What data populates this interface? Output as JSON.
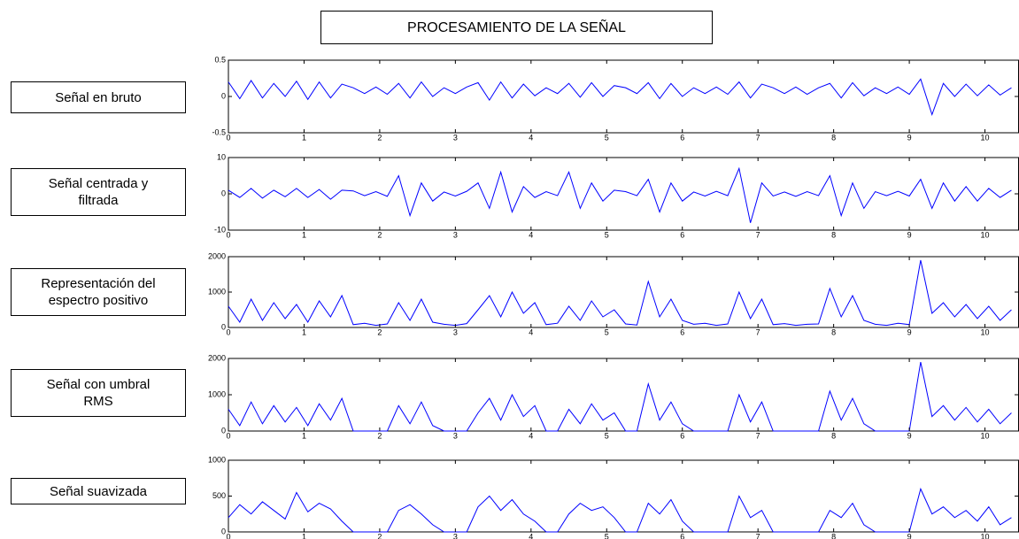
{
  "header": {
    "title": "PROCESAMIENTO DE LA SEÑAL"
  },
  "chart_data": [
    {
      "type": "line",
      "title": "Señal en bruto",
      "x": [
        0,
        0.15,
        0.3,
        0.45,
        0.6,
        0.75,
        0.9,
        1.05,
        1.2,
        1.35,
        1.5,
        1.65,
        1.8,
        1.95,
        2.1,
        2.25,
        2.4,
        2.55,
        2.7,
        2.85,
        3,
        3.15,
        3.3,
        3.45,
        3.6,
        3.75,
        3.9,
        4.05,
        4.2,
        4.35,
        4.5,
        4.65,
        4.8,
        4.95,
        5.1,
        5.25,
        5.4,
        5.55,
        5.7,
        5.85,
        6,
        6.15,
        6.3,
        6.45,
        6.6,
        6.75,
        6.9,
        7.05,
        7.2,
        7.35,
        7.5,
        7.65,
        7.8,
        7.95,
        8.1,
        8.25,
        8.4,
        8.55,
        8.7,
        8.85,
        9,
        9.15,
        9.3,
        9.45,
        9.6,
        9.75,
        9.9,
        10.05,
        10.2,
        10.35
      ],
      "series": [
        {
          "color": "#0000ff",
          "values": [
            0.2,
            -0.03,
            0.22,
            -0.02,
            0.18,
            0,
            0.21,
            -0.04,
            0.2,
            -0.02,
            0.17,
            0.12,
            0.04,
            0.13,
            0.03,
            0.18,
            -0.02,
            0.2,
            0,
            0.12,
            0.04,
            0.13,
            0.19,
            -0.05,
            0.2,
            -0.02,
            0.17,
            0.01,
            0.12,
            0.04,
            0.18,
            -0.01,
            0.19,
            0,
            0.15,
            0.12,
            0.04,
            0.19,
            -0.03,
            0.18,
            0,
            0.12,
            0.04,
            0.13,
            0.03,
            0.2,
            -0.02,
            0.17,
            0.12,
            0.04,
            0.13,
            0.03,
            0.12,
            0.18,
            -0.02,
            0.19,
            0.01,
            0.12,
            0.04,
            0.13,
            0.03,
            0.24,
            -0.25,
            0.18,
            0,
            0.17,
            0.01,
            0.16,
            0.02,
            0.12
          ]
        }
      ],
      "xlim": [
        0,
        10.45
      ],
      "ylim": [
        -0.5,
        0.5
      ],
      "xticks": [
        0,
        1,
        2,
        3,
        4,
        5,
        6,
        7,
        8,
        9,
        10
      ],
      "yticks": [
        -0.5,
        0,
        0.5
      ]
    },
    {
      "type": "line",
      "title": "Señal centrada y\nfiltrada",
      "x": [
        0,
        0.15,
        0.3,
        0.45,
        0.6,
        0.75,
        0.9,
        1.05,
        1.2,
        1.35,
        1.5,
        1.65,
        1.8,
        1.95,
        2.1,
        2.25,
        2.4,
        2.55,
        2.7,
        2.85,
        3,
        3.15,
        3.3,
        3.45,
        3.6,
        3.75,
        3.9,
        4.05,
        4.2,
        4.35,
        4.5,
        4.65,
        4.8,
        4.95,
        5.1,
        5.25,
        5.4,
        5.55,
        5.7,
        5.85,
        6,
        6.15,
        6.3,
        6.45,
        6.6,
        6.75,
        6.9,
        7.05,
        7.2,
        7.35,
        7.5,
        7.65,
        7.8,
        7.95,
        8.1,
        8.25,
        8.4,
        8.55,
        8.7,
        8.85,
        9,
        9.15,
        9.3,
        9.45,
        9.6,
        9.75,
        9.9,
        10.05,
        10.2,
        10.35
      ],
      "series": [
        {
          "color": "#0000ff",
          "values": [
            1,
            -1,
            1.5,
            -1.2,
            1,
            -0.8,
            1.5,
            -1,
            1.2,
            -1.5,
            1,
            0.8,
            -0.5,
            0.6,
            -0.7,
            5,
            -6,
            3,
            -2,
            0.5,
            -0.6,
            0.7,
            3,
            -4,
            6,
            -5,
            2,
            -1,
            0.6,
            -0.5,
            6,
            -4,
            3,
            -2,
            1,
            0.6,
            -0.5,
            4,
            -5,
            3,
            -2,
            0.5,
            -0.6,
            0.7,
            -0.5,
            7,
            -8,
            3,
            -0.6,
            0.5,
            -0.7,
            0.6,
            -0.5,
            5,
            -6,
            3,
            -4,
            0.6,
            -0.5,
            0.7,
            -0.6,
            4,
            -4,
            3,
            -2,
            2,
            -2,
            1.5,
            -1,
            1
          ]
        }
      ],
      "xlim": [
        0,
        10.45
      ],
      "ylim": [
        -10,
        10
      ],
      "xticks": [
        0,
        1,
        2,
        3,
        4,
        5,
        6,
        7,
        8,
        9,
        10
      ],
      "yticks": [
        -10,
        0,
        10
      ]
    },
    {
      "type": "line",
      "title": "Representación del\nespectro positivo",
      "x": [
        0,
        0.15,
        0.3,
        0.45,
        0.6,
        0.75,
        0.9,
        1.05,
        1.2,
        1.35,
        1.5,
        1.65,
        1.8,
        1.95,
        2.1,
        2.25,
        2.4,
        2.55,
        2.7,
        2.85,
        3,
        3.15,
        3.3,
        3.45,
        3.6,
        3.75,
        3.9,
        4.05,
        4.2,
        4.35,
        4.5,
        4.65,
        4.8,
        4.95,
        5.1,
        5.25,
        5.4,
        5.55,
        5.7,
        5.85,
        6,
        6.15,
        6.3,
        6.45,
        6.6,
        6.75,
        6.9,
        7.05,
        7.2,
        7.35,
        7.5,
        7.65,
        7.8,
        7.95,
        8.1,
        8.25,
        8.4,
        8.55,
        8.7,
        8.85,
        9,
        9.15,
        9.3,
        9.45,
        9.6,
        9.75,
        9.9,
        10.05,
        10.2,
        10.35
      ],
      "series": [
        {
          "color": "#0000ff",
          "values": [
            600,
            150,
            800,
            200,
            700,
            250,
            650,
            150,
            750,
            300,
            900,
            80,
            120,
            60,
            100,
            700,
            200,
            800,
            150,
            90,
            60,
            110,
            500,
            900,
            300,
            1000,
            400,
            700,
            80,
            120,
            600,
            200,
            750,
            300,
            500,
            100,
            70,
            1300,
            300,
            800,
            200,
            90,
            120,
            60,
            100,
            1000,
            250,
            800,
            80,
            110,
            60,
            90,
            100,
            1100,
            300,
            900,
            200,
            90,
            60,
            120,
            80,
            1900,
            400,
            700,
            300,
            650,
            250,
            600,
            200,
            500
          ]
        }
      ],
      "xlim": [
        0,
        10.45
      ],
      "ylim": [
        0,
        2000
      ],
      "xticks": [
        0,
        1,
        2,
        3,
        4,
        5,
        6,
        7,
        8,
        9,
        10
      ],
      "yticks": [
        0,
        1000,
        2000
      ]
    },
    {
      "type": "line",
      "title": "Señal con umbral\nRMS",
      "x": [
        0,
        0.15,
        0.3,
        0.45,
        0.6,
        0.75,
        0.9,
        1.05,
        1.2,
        1.35,
        1.5,
        1.65,
        1.8,
        1.95,
        2.1,
        2.25,
        2.4,
        2.55,
        2.7,
        2.85,
        3,
        3.15,
        3.3,
        3.45,
        3.6,
        3.75,
        3.9,
        4.05,
        4.2,
        4.35,
        4.5,
        4.65,
        4.8,
        4.95,
        5.1,
        5.25,
        5.4,
        5.55,
        5.7,
        5.85,
        6,
        6.15,
        6.3,
        6.45,
        6.6,
        6.75,
        6.9,
        7.05,
        7.2,
        7.35,
        7.5,
        7.65,
        7.8,
        7.95,
        8.1,
        8.25,
        8.4,
        8.55,
        8.7,
        8.85,
        9,
        9.15,
        9.3,
        9.45,
        9.6,
        9.75,
        9.9,
        10.05,
        10.2,
        10.35
      ],
      "series": [
        {
          "color": "#0000ff",
          "values": [
            600,
            150,
            800,
            200,
            700,
            250,
            650,
            150,
            750,
            300,
            900,
            0,
            0,
            0,
            0,
            700,
            200,
            800,
            150,
            0,
            0,
            0,
            500,
            900,
            300,
            1000,
            400,
            700,
            0,
            0,
            600,
            200,
            750,
            300,
            500,
            0,
            0,
            1300,
            300,
            800,
            200,
            0,
            0,
            0,
            0,
            1000,
            250,
            800,
            0,
            0,
            0,
            0,
            0,
            1100,
            300,
            900,
            200,
            0,
            0,
            0,
            0,
            1900,
            400,
            700,
            300,
            650,
            250,
            600,
            200,
            500
          ]
        }
      ],
      "xlim": [
        0,
        10.45
      ],
      "ylim": [
        0,
        2000
      ],
      "xticks": [
        0,
        1,
        2,
        3,
        4,
        5,
        6,
        7,
        8,
        9,
        10
      ],
      "yticks": [
        0,
        1000,
        2000
      ]
    },
    {
      "type": "line",
      "title": "Señal suavizada",
      "x": [
        0,
        0.15,
        0.3,
        0.45,
        0.6,
        0.75,
        0.9,
        1.05,
        1.2,
        1.35,
        1.5,
        1.65,
        1.8,
        1.95,
        2.1,
        2.25,
        2.4,
        2.55,
        2.7,
        2.85,
        3,
        3.15,
        3.3,
        3.45,
        3.6,
        3.75,
        3.9,
        4.05,
        4.2,
        4.35,
        4.5,
        4.65,
        4.8,
        4.95,
        5.1,
        5.25,
        5.4,
        5.55,
        5.7,
        5.85,
        6,
        6.15,
        6.3,
        6.45,
        6.6,
        6.75,
        6.9,
        7.05,
        7.2,
        7.35,
        7.5,
        7.65,
        7.8,
        7.95,
        8.1,
        8.25,
        8.4,
        8.55,
        8.7,
        8.85,
        9,
        9.15,
        9.3,
        9.45,
        9.6,
        9.75,
        9.9,
        10.05,
        10.2,
        10.35
      ],
      "series": [
        {
          "color": "#0000ff",
          "values": [
            200,
            380,
            250,
            420,
            300,
            180,
            550,
            280,
            400,
            320,
            150,
            0,
            0,
            0,
            0,
            300,
            380,
            250,
            100,
            0,
            0,
            0,
            350,
            500,
            300,
            450,
            250,
            150,
            0,
            0,
            250,
            400,
            300,
            350,
            200,
            0,
            0,
            400,
            250,
            450,
            150,
            0,
            0,
            0,
            0,
            500,
            200,
            300,
            0,
            0,
            0,
            0,
            0,
            300,
            200,
            400,
            100,
            0,
            0,
            0,
            0,
            600,
            250,
            350,
            200,
            300,
            150,
            350,
            100,
            200
          ]
        }
      ],
      "xlim": [
        0,
        10.45
      ],
      "ylim": [
        0,
        1000
      ],
      "xticks": [
        0,
        1,
        2,
        3,
        4,
        5,
        6,
        7,
        8,
        9,
        10
      ],
      "yticks": [
        0,
        500,
        1000
      ]
    }
  ]
}
